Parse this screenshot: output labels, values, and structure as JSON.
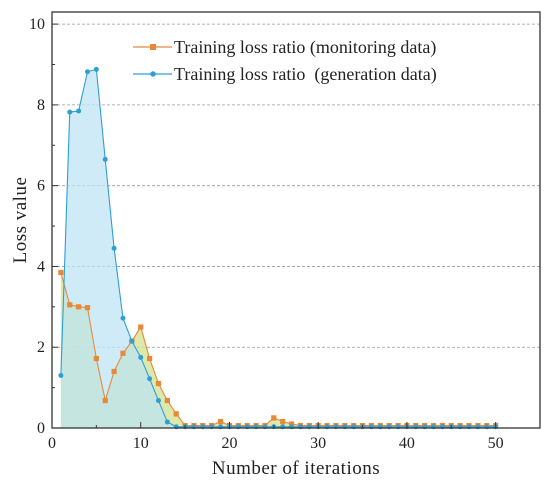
{
  "chart_data": {
    "type": "area",
    "xlabel": "Number of iterations",
    "ylabel": "Loss  value",
    "xlim": [
      0,
      55
    ],
    "ylim": [
      0,
      10.3
    ],
    "xticks": [
      0,
      10,
      20,
      30,
      40,
      50
    ],
    "yticks": [
      0,
      2,
      4,
      6,
      8,
      10
    ],
    "grid": "horizontal-dashed",
    "legend_position": "top-right",
    "series": [
      {
        "name": "Training loss ratio (monitoring data)",
        "color": "#e8893a",
        "fill": "#cfe08a",
        "marker": "square",
        "x": [
          1,
          2,
          3,
          4,
          5,
          6,
          7,
          8,
          9,
          10,
          11,
          12,
          13,
          14,
          15,
          16,
          17,
          18,
          19,
          20,
          21,
          22,
          23,
          24,
          25,
          26,
          27,
          28,
          29,
          30,
          31,
          32,
          33,
          34,
          35,
          36,
          37,
          38,
          39,
          40,
          41,
          42,
          43,
          44,
          45,
          46,
          47,
          48,
          49,
          50
        ],
        "y": [
          3.85,
          3.05,
          3.0,
          2.98,
          1.72,
          0.68,
          1.4,
          1.85,
          2.15,
          2.5,
          1.72,
          1.1,
          0.68,
          0.35,
          0.06,
          0.06,
          0.06,
          0.06,
          0.16,
          0.06,
          0.06,
          0.06,
          0.06,
          0.06,
          0.25,
          0.16,
          0.1,
          0.06,
          0.06,
          0.06,
          0.06,
          0.06,
          0.06,
          0.06,
          0.06,
          0.06,
          0.06,
          0.06,
          0.06,
          0.06,
          0.06,
          0.06,
          0.06,
          0.06,
          0.06,
          0.06,
          0.06,
          0.06,
          0.06,
          0.06
        ]
      },
      {
        "name": "Training loss ratio  (generation data)",
        "color": "#2e9fd6",
        "fill": "#bde3f5",
        "marker": "circle",
        "x": [
          1,
          2,
          3,
          4,
          5,
          6,
          7,
          8,
          9,
          10,
          11,
          12,
          13,
          14,
          15,
          16,
          17,
          18,
          19,
          20,
          21,
          22,
          23,
          24,
          25,
          26,
          27,
          28,
          29,
          30,
          31,
          32,
          33,
          34,
          35,
          36,
          37,
          38,
          39,
          40,
          41,
          42,
          43,
          44,
          45,
          46,
          47,
          48,
          49,
          50
        ],
        "y": [
          1.3,
          7.82,
          7.85,
          8.82,
          8.88,
          6.65,
          4.45,
          2.72,
          2.15,
          1.75,
          1.22,
          0.68,
          0.15,
          0.03,
          0.03,
          0.03,
          0.03,
          0.03,
          0.03,
          0.03,
          0.03,
          0.03,
          0.03,
          0.03,
          0.03,
          0.03,
          0.03,
          0.03,
          0.03,
          0.03,
          0.03,
          0.03,
          0.03,
          0.03,
          0.03,
          0.03,
          0.03,
          0.03,
          0.03,
          0.03,
          0.03,
          0.03,
          0.03,
          0.03,
          0.03,
          0.03,
          0.03,
          0.03,
          0.03,
          0.03
        ]
      }
    ]
  }
}
